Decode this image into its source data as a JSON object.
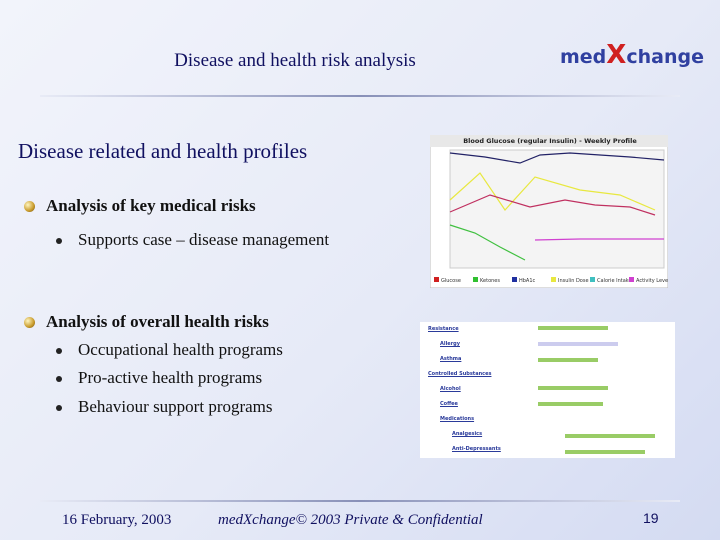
{
  "header": {
    "title": "Disease and health risk analysis",
    "logo": [
      "med",
      "X",
      "change"
    ]
  },
  "heading": "Disease related and health profiles",
  "sections": [
    {
      "title": "Analysis of key medical risks",
      "items": [
        "Supports case – disease management"
      ]
    },
    {
      "title": "Analysis of overall health risks",
      "items": [
        "Occupational health programs",
        "Pro-active health programs",
        "Behaviour support programs"
      ]
    }
  ],
  "figure1": {
    "title": "Blood Glucose (regular Insulin) - Weekly Profile",
    "legend": [
      "Glucose",
      "Ketones",
      "HbA1c",
      "Insulin Dose",
      "Calorie Intake",
      "Activity Level"
    ]
  },
  "figure2": {
    "items": [
      "Resistance",
      "Allergy",
      "Asthma",
      "Controlled Substances",
      "Alcohol",
      "Coffee",
      "Medications",
      "Analgesics",
      "Anti-Depressants"
    ]
  },
  "footer": {
    "date": "16 February, 2003",
    "copyright": [
      "med",
      "X",
      "change© 2003 Private & Confidential"
    ],
    "page": "19"
  }
}
